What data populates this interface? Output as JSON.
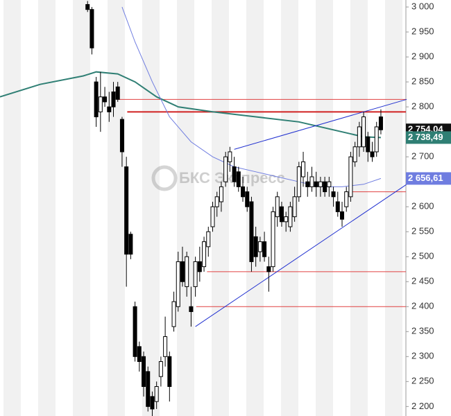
{
  "chart_data": {
    "type": "candlestick",
    "xlim": [
      -19.3,
      74.8
    ],
    "ylim": [
      2181,
      3014
    ],
    "yticks": [
      {
        "value": 3000,
        "label": "3 000"
      },
      {
        "value": 2950,
        "label": "2 950"
      },
      {
        "value": 2900,
        "label": "2 900"
      },
      {
        "value": 2850,
        "label": "2 850"
      },
      {
        "value": 2800,
        "label": "2 800"
      },
      {
        "value": 2750,
        "label": "2 750"
      },
      {
        "value": 2700,
        "label": "2 700"
      },
      {
        "value": 2650,
        "label": "2 650"
      },
      {
        "value": 2600,
        "label": "2 600"
      },
      {
        "value": 2550,
        "label": "2 550"
      },
      {
        "value": 2500,
        "label": "2 500"
      },
      {
        "value": 2450,
        "label": "2 450"
      },
      {
        "value": 2400,
        "label": "2 400"
      },
      {
        "value": 2350,
        "label": "2 350"
      },
      {
        "value": 2300,
        "label": "2 300"
      },
      {
        "value": 2250,
        "label": "2 250"
      },
      {
        "value": 2200,
        "label": "2 200"
      }
    ],
    "watermark": "БКС Экспресс",
    "open": [
      3005,
      2995,
      2850,
      2790,
      2820,
      2800,
      2830,
      2840,
      2775,
      2680,
      2545,
      2400,
      2320,
      2300,
      2270,
      2220,
      2210,
      2260,
      2300,
      2300,
      2360,
      2400,
      2490,
      2440,
      2400,
      2440,
      2490,
      2480,
      2520,
      2560,
      2600,
      2610,
      2650,
      2690,
      2680,
      2670,
      2640,
      2630,
      2610,
      2540,
      2510,
      2530,
      2480,
      2480,
      2580,
      2600,
      2570,
      2560,
      2580,
      2620,
      2660,
      2650,
      2640,
      2650,
      2640,
      2650,
      2640,
      2630,
      2610,
      2590,
      2600,
      2620,
      2690,
      2720,
      2720,
      2740,
      2710,
      2710,
      2780
    ],
    "high": [
      3012,
      3000,
      2860,
      2870,
      2840,
      2830,
      2850,
      2850,
      2780,
      2700,
      2550,
      2410,
      2330,
      2310,
      2280,
      2230,
      2250,
      2300,
      2380,
      2310,
      2430,
      2510,
      2520,
      2510,
      2440,
      2500,
      2520,
      2540,
      2560,
      2610,
      2630,
      2650,
      2710,
      2720,
      2700,
      2680,
      2660,
      2640,
      2620,
      2560,
      2540,
      2550,
      2500,
      2600,
      2630,
      2610,
      2590,
      2610,
      2640,
      2690,
      2710,
      2670,
      2680,
      2670,
      2660,
      2660,
      2660,
      2640,
      2630,
      2610,
      2640,
      2710,
      2730,
      2770,
      2790,
      2750,
      2730,
      2770,
      2795
    ],
    "low": [
      2990,
      2905,
      2760,
      2750,
      2800,
      2770,
      2780,
      2810,
      2680,
      2440,
      2495,
      2290,
      2270,
      2220,
      2190,
      2180,
      2195,
      2240,
      2280,
      2210,
      2350,
      2390,
      2440,
      2420,
      2360,
      2420,
      2450,
      2470,
      2500,
      2550,
      2580,
      2590,
      2640,
      2670,
      2640,
      2630,
      2610,
      2590,
      2470,
      2480,
      2490,
      2490,
      2430,
      2470,
      2560,
      2560,
      2550,
      2550,
      2570,
      2610,
      2640,
      2620,
      2630,
      2620,
      2620,
      2620,
      2620,
      2600,
      2580,
      2560,
      2590,
      2610,
      2680,
      2700,
      2710,
      2690,
      2690,
      2700,
      2745
    ],
    "close": [
      2995,
      2918,
      2780,
      2820,
      2810,
      2790,
      2800,
      2815,
      2710,
      2505,
      2505,
      2300,
      2290,
      2240,
      2200,
      2195,
      2240,
      2290,
      2340,
      2240,
      2410,
      2490,
      2450,
      2500,
      2390,
      2490,
      2470,
      2530,
      2550,
      2600,
      2620,
      2640,
      2700,
      2710,
      2650,
      2640,
      2620,
      2600,
      2490,
      2500,
      2530,
      2500,
      2470,
      2590,
      2620,
      2570,
      2580,
      2600,
      2620,
      2680,
      2690,
      2640,
      2660,
      2640,
      2650,
      2630,
      2650,
      2620,
      2590,
      2575,
      2630,
      2700,
      2720,
      2760,
      2780,
      2710,
      2700,
      2760,
      2754.04
    ],
    "series": [
      {
        "color": "#2f7f74",
        "x": [
          -19.3,
          -10,
          0,
          3,
          8,
          12,
          17,
          22,
          30,
          40,
          50,
          60,
          65,
          69
        ],
        "values": [
          2820,
          2845,
          2862,
          2870,
          2866,
          2850,
          2820,
          2800,
          2790,
          2780,
          2770,
          2750,
          2740,
          2738.49
        ]
      },
      {
        "color": "#6f7de0",
        "x": [
          9,
          12,
          16,
          20,
          25,
          30,
          35,
          40,
          45,
          50,
          55,
          60,
          65,
          69
        ],
        "values": [
          3000,
          2930,
          2850,
          2780,
          2730,
          2700,
          2680,
          2670,
          2660,
          2650,
          2640,
          2640,
          2645,
          2656.61
        ]
      }
    ],
    "levels": [
      {
        "x": 8.1,
        "value": 2815,
        "color": "#e04040",
        "width": 1
      },
      {
        "x": 10.2,
        "value": 2790,
        "color": "#d02020",
        "width": 2
      },
      {
        "x": 61.9,
        "value": 2630,
        "color": "#e04040",
        "width": 1
      },
      {
        "x": 28.7,
        "value": 2470,
        "color": "#e04040",
        "width": 1
      },
      {
        "x": 26.2,
        "value": 2400,
        "color": "#e04040",
        "width": 1
      }
    ],
    "trendlines": [
      {
        "x": [
          35,
          75
        ],
        "values": [
          2715,
          2815
        ],
        "color": "#2030d0"
      },
      {
        "x": [
          26,
          75
        ],
        "values": [
          2360,
          2645
        ],
        "color": "#2030d0"
      }
    ],
    "price_labels": [
      {
        "value": 2754.04,
        "label": "2 754,04",
        "color": "#111111"
      },
      {
        "value": 2738.49,
        "label": "2 738,49",
        "color": "#2f7f74"
      },
      {
        "value": 2656.61,
        "label": "2 656,61",
        "color": "#6f7de0"
      }
    ]
  }
}
